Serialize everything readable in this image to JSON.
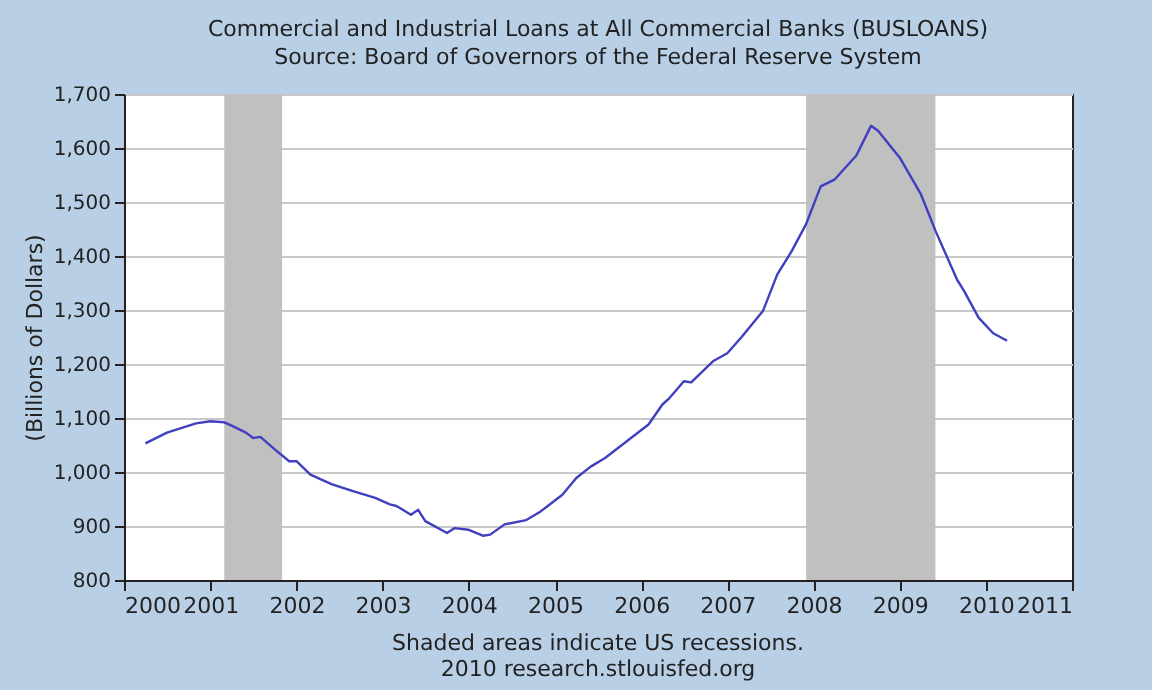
{
  "chart_data": {
    "type": "line",
    "title": "Commercial and Industrial Loans at All Commercial Banks (BUSLOANS)",
    "subtitle": "Source: Board of Governors of the Federal Reserve System",
    "ylabel": "(Billions of Dollars)",
    "x": [
      "2000-04",
      "2000-07",
      "2000-11",
      "2001-01",
      "2001-03",
      "2001-04",
      "2001-06",
      "2001-07",
      "2001-08",
      "2001-10",
      "2001-12",
      "2002-01",
      "2002-03",
      "2002-06",
      "2002-09",
      "2002-12",
      "2003-02",
      "2003-03",
      "2003-05",
      "2003-06",
      "2003-07",
      "2003-10",
      "2003-11",
      "2004-01",
      "2004-03",
      "2004-04",
      "2004-06",
      "2004-09",
      "2004-11",
      "2005-02",
      "2005-04",
      "2005-06",
      "2005-08",
      "2005-11",
      "2006-02",
      "2006-04",
      "2006-05",
      "2006-07",
      "2006-08",
      "2006-11",
      "2007-01",
      "2007-03",
      "2007-06",
      "2007-08",
      "2007-10",
      "2007-12",
      "2008-02",
      "2008-04",
      "2008-07",
      "2008-09",
      "2008-10",
      "2009-01",
      "2009-04",
      "2009-06",
      "2009-09",
      "2009-10",
      "2009-12",
      "2010-02",
      "2010-04"
    ],
    "series": [
      {
        "color": "#3f3fbf",
        "values": [
          1053,
          1073,
          1090,
          1094,
          1092,
          1086,
          1073,
          1063,
          1065,
          1042,
          1020,
          1020,
          995,
          977,
          964,
          952,
          940,
          937,
          921,
          930,
          909,
          887,
          896,
          893,
          882,
          884,
          903,
          911,
          927,
          958,
          989,
          1010,
          1026,
          1057,
          1088,
          1125,
          1137,
          1168,
          1166,
          1205,
          1220,
          1249,
          1298,
          1366,
          1409,
          1459,
          1529,
          1542,
          1586,
          1641,
          1632,
          1582,
          1514,
          1447,
          1356,
          1335,
          1286,
          1257,
          1243
        ]
      }
    ],
    "xlim": [
      "2000",
      "2011"
    ],
    "xticks": [
      "2000",
      "2001",
      "2002",
      "2003",
      "2004",
      "2005",
      "2006",
      "2007",
      "2008",
      "2009",
      "2010",
      "2011"
    ],
    "ylim": [
      800,
      1700
    ],
    "yticks": [
      {
        "value": 800,
        "label": "800"
      },
      {
        "value": 900,
        "label": "900"
      },
      {
        "value": 1000,
        "label": "1,000"
      },
      {
        "value": 1100,
        "label": "1,100"
      },
      {
        "value": 1200,
        "label": "1,200"
      },
      {
        "value": 1300,
        "label": "1,300"
      },
      {
        "value": 1400,
        "label": "1,400"
      },
      {
        "value": 1500,
        "label": "1,500"
      },
      {
        "value": 1600,
        "label": "1,600"
      },
      {
        "value": 1700,
        "label": "1,700"
      }
    ],
    "bands": [
      {
        "axis": "x",
        "from": "2001-03",
        "to": "2001-11",
        "color": "#c0c0c0"
      },
      {
        "axis": "x",
        "from": "2007-12",
        "to": "2009-06",
        "color": "#c0c0c0"
      }
    ],
    "annotations": [
      "Shaded areas indicate US recessions.",
      "2010 research.stlouisfed.org"
    ],
    "grid": "y",
    "legend": false
  }
}
